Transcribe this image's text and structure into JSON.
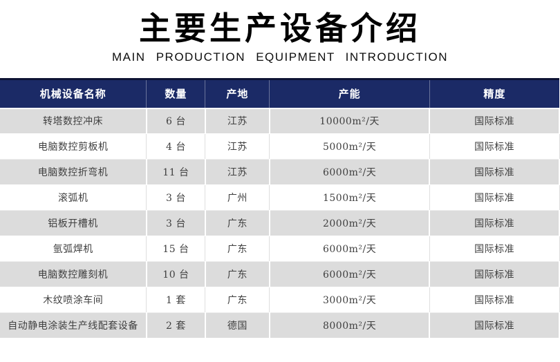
{
  "header": {
    "title": "主要生产设备介绍",
    "subtitle": "MAIN PRODUCTION EQUIPMENT INTRODUCTION"
  },
  "table": {
    "columns": [
      "机械设备名称",
      "数量",
      "产地",
      "产能",
      "精度"
    ],
    "rows": [
      [
        "转塔数控冲床",
        "6 台",
        "江苏",
        "10000m²/天",
        "国际标准"
      ],
      [
        "电脑数控剪板机",
        "4 台",
        "江苏",
        "5000m²/天",
        "国际标准"
      ],
      [
        "电脑数控折弯机",
        "11 台",
        "江苏",
        "6000m²/天",
        "国际标准"
      ],
      [
        "滚弧机",
        "3 台",
        "广州",
        "1500m²/天",
        "国际标准"
      ],
      [
        "铝板开槽机",
        "3 台",
        "广东",
        "2000m²/天",
        "国际标准"
      ],
      [
        "氩弧焊机",
        "15 台",
        "广东",
        "6000m²/天",
        "国际标准"
      ],
      [
        "电脑数控雕刻机",
        "10 台",
        "广东",
        "6000m²/天",
        "国际标准"
      ],
      [
        "木纹喷涂车间",
        "1 套",
        "广东",
        "3000m²/天",
        "国际标准"
      ],
      [
        "自动静电涂装生产线配套设备",
        "2 套",
        "德国",
        "8000m²/天",
        "国际标准"
      ]
    ],
    "colors": {
      "header_bg": "#1b2a66",
      "header_top_border": "#0d1334",
      "header_text": "#ffffff",
      "row_alt_bg": "#dcdcdc",
      "row_bg": "#ffffff",
      "body_text": "#3f3f3f"
    }
  }
}
